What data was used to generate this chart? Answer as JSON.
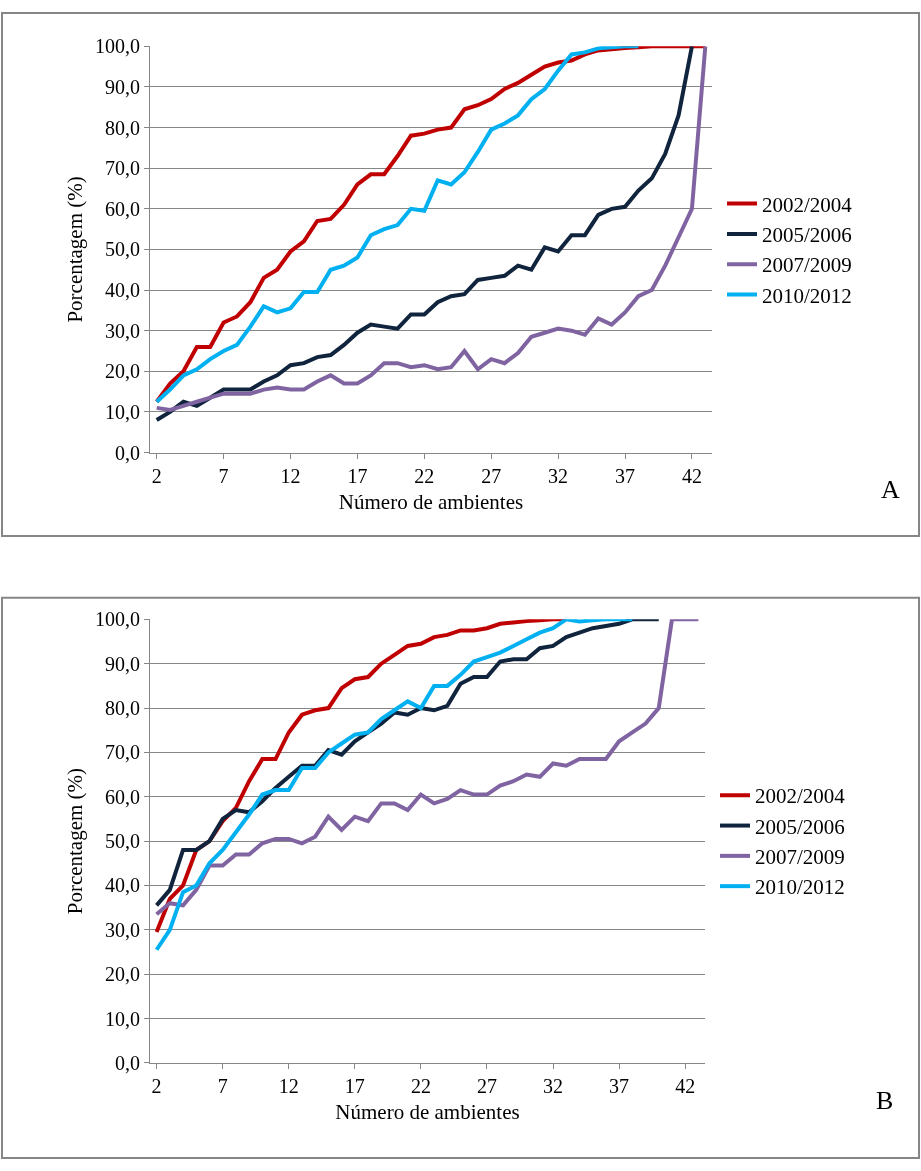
{
  "chart_data": [
    {
      "type": "line",
      "xlabel": "Número de ambientes",
      "ylabel": "Porcentagem (%)",
      "grid": "y",
      "legend": "right",
      "annotations": [
        "A"
      ],
      "x": [
        2,
        3,
        4,
        5,
        6,
        7,
        8,
        9,
        10,
        11,
        12,
        13,
        14,
        15,
        16,
        17,
        18,
        19,
        20,
        21,
        22,
        23,
        24,
        25,
        26,
        27,
        28,
        29,
        30,
        31,
        32,
        33,
        34,
        35,
        36,
        37,
        38,
        39,
        40,
        41,
        42,
        43
      ],
      "xlim": [
        1.5,
        43.5
      ],
      "xticks": [
        2,
        7,
        12,
        17,
        22,
        27,
        32,
        37,
        42
      ],
      "ylim": [
        0,
        100
      ],
      "yticks": [
        {
          "value": 0,
          "label": "0,0"
        },
        {
          "value": 10,
          "label": "10,0"
        },
        {
          "value": 20,
          "label": "20,0"
        },
        {
          "value": 30,
          "label": "30,0"
        },
        {
          "value": 40,
          "label": "40,0"
        },
        {
          "value": 50,
          "label": "50,0"
        },
        {
          "value": 60,
          "label": "60,0"
        },
        {
          "value": 70,
          "label": "70,0"
        },
        {
          "value": 80,
          "label": "80,0"
        },
        {
          "value": 90,
          "label": "90,0"
        },
        {
          "value": 100,
          "label": "100,0"
        }
      ],
      "series": [
        {
          "name": "2002/2004",
          "color": "#c00000",
          "values": [
            12.5,
            17,
            20,
            26,
            26,
            32,
            33.5,
            37,
            43,
            45,
            49.5,
            52,
            57,
            57.5,
            61,
            66,
            68.5,
            68.5,
            73,
            78,
            78.5,
            79.5,
            80,
            84.5,
            85.5,
            87,
            89.5,
            91,
            93,
            95,
            96,
            96.5,
            98,
            99,
            99.3,
            99.6,
            99.8,
            100,
            100,
            100,
            100,
            100
          ]
        },
        {
          "name": "2005/2006",
          "color": "#10243e",
          "values": [
            8,
            10,
            12.5,
            11.5,
            13.5,
            15.5,
            15.5,
            15.5,
            17.5,
            19,
            21.5,
            22,
            23.5,
            24,
            26.5,
            29.5,
            31.5,
            31,
            30.5,
            34,
            34,
            37,
            38.5,
            39,
            42.5,
            43,
            43.5,
            46,
            45,
            50.5,
            49.5,
            53.5,
            53.5,
            58.5,
            60,
            60.5,
            64.5,
            67.5,
            73.5,
            83,
            100,
            null
          ]
        },
        {
          "name": "2007/2009",
          "color": "#8064a2",
          "values": [
            11,
            10.5,
            11.5,
            12.5,
            13.5,
            14.5,
            14.5,
            14.5,
            15.5,
            16,
            15.5,
            15.5,
            17.5,
            19,
            17,
            17,
            19,
            22,
            22,
            21,
            21.5,
            20.5,
            21,
            25,
            20.5,
            23,
            22,
            24.5,
            28.5,
            29.5,
            30.5,
            30,
            29,
            33,
            31.5,
            34.5,
            38.5,
            40,
            46,
            53,
            60,
            100
          ]
        },
        {
          "name": "2010/2012",
          "color": "#00b0f0",
          "values": [
            12.5,
            15.5,
            19,
            20.5,
            23,
            25,
            26.5,
            31,
            36,
            34.5,
            35.5,
            39.5,
            39.5,
            45,
            46,
            48,
            53.5,
            55,
            56,
            60,
            59.5,
            67,
            66,
            69,
            74,
            79.5,
            81,
            83,
            87,
            89.5,
            94,
            98,
            98.5,
            99.5,
            99.8,
            100,
            100,
            null,
            null,
            null,
            null,
            null
          ]
        }
      ]
    },
    {
      "type": "line",
      "xlabel": "Número de ambientes",
      "ylabel": "Porcentagem (%)",
      "grid": "y",
      "legend": "right",
      "annotations": [
        "B"
      ],
      "x": [
        2,
        3,
        4,
        5,
        6,
        7,
        8,
        9,
        10,
        11,
        12,
        13,
        14,
        15,
        16,
        17,
        18,
        19,
        20,
        21,
        22,
        23,
        24,
        25,
        26,
        27,
        28,
        29,
        30,
        31,
        32,
        33,
        34,
        35,
        36,
        37,
        38,
        39,
        40,
        41,
        42,
        43
      ],
      "xlim": [
        1.5,
        43.5
      ],
      "xticks": [
        2,
        7,
        12,
        17,
        22,
        27,
        32,
        37,
        42
      ],
      "ylim": [
        0,
        100
      ],
      "yticks": [
        {
          "value": 0,
          "label": "0,0"
        },
        {
          "value": 10,
          "label": "10,0"
        },
        {
          "value": 20,
          "label": "20,0"
        },
        {
          "value": 30,
          "label": "30,0"
        },
        {
          "value": 40,
          "label": "40,0"
        },
        {
          "value": 50,
          "label": "50,0"
        },
        {
          "value": 60,
          "label": "60,0"
        },
        {
          "value": 70,
          "label": "70,0"
        },
        {
          "value": 80,
          "label": "80,0"
        },
        {
          "value": 90,
          "label": "90,0"
        },
        {
          "value": 100,
          "label": "100,0"
        }
      ],
      "series": [
        {
          "name": "2002/2004",
          "color": "#c00000",
          "values": [
            29.5,
            37,
            40,
            48,
            50,
            54.5,
            57.5,
            63.5,
            68.5,
            68.5,
            74.5,
            78.5,
            79.5,
            80,
            84.5,
            86.5,
            87,
            90,
            92,
            94,
            94.5,
            96,
            96.5,
            97.5,
            97.5,
            98,
            99,
            99.3,
            99.6,
            99.8,
            100,
            100,
            null,
            null,
            null,
            null,
            null,
            null,
            null,
            null,
            null,
            null
          ]
        },
        {
          "name": "2005/2006",
          "color": "#10243e",
          "values": [
            35.5,
            39,
            48,
            48,
            50,
            55,
            57,
            56.5,
            59,
            62,
            64.5,
            67,
            67,
            70.5,
            69.5,
            72.5,
            74.5,
            76.5,
            79,
            78.5,
            80,
            79.5,
            80.5,
            85.5,
            87,
            87,
            90.5,
            91,
            91,
            93.5,
            94,
            96,
            97,
            98,
            98.5,
            99,
            100,
            100,
            100,
            null,
            null,
            null
          ]
        },
        {
          "name": "2007/2009",
          "color": "#8064a2",
          "values": [
            33.5,
            36,
            35.5,
            39,
            44.5,
            44.5,
            47,
            47,
            49.5,
            50.5,
            50.5,
            49.5,
            51,
            55.5,
            52.5,
            55.5,
            54.5,
            58.5,
            58.5,
            57,
            60.5,
            58.5,
            59.5,
            61.5,
            60.5,
            60.5,
            62.5,
            63.5,
            65,
            64.5,
            67.5,
            67,
            68.5,
            68.5,
            68.5,
            72.5,
            74.5,
            76.5,
            80,
            100,
            100,
            100
          ]
        },
        {
          "name": "2010/2012",
          "color": "#00b0f0",
          "values": [
            25.5,
            30,
            38.5,
            40,
            45,
            48,
            52,
            56,
            60.5,
            61.5,
            61.5,
            66.5,
            66.5,
            70,
            72,
            74,
            74.5,
            77.5,
            79.5,
            81.5,
            80,
            85,
            85,
            87.5,
            90.5,
            91.5,
            92.5,
            94,
            95.5,
            97,
            98,
            100,
            99.5,
            99.8,
            100,
            100,
            100,
            null,
            null,
            null,
            null,
            null
          ]
        }
      ]
    }
  ]
}
